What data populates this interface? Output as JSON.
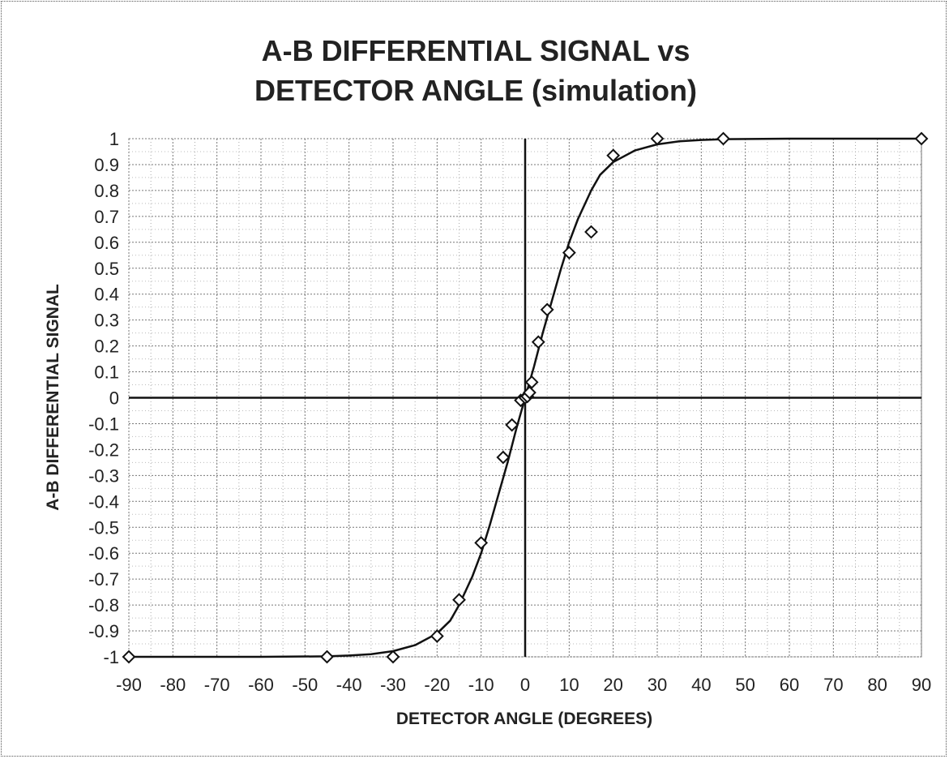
{
  "chart_data": {
    "type": "scatter",
    "title_lines": [
      "A-B DIFFERENTIAL SIGNAL vs",
      "DETECTOR ANGLE (simulation)"
    ],
    "xlabel": "DETECTOR ANGLE (DEGREES)",
    "ylabel": "A-B DIFFERENTIAL SIGNAL",
    "xlim": [
      -90,
      90
    ],
    "ylim": [
      -1,
      1
    ],
    "x_ticks": [
      -90,
      -80,
      -70,
      -60,
      -50,
      -40,
      -30,
      -20,
      -10,
      0,
      10,
      20,
      30,
      40,
      50,
      60,
      70,
      80,
      90
    ],
    "y_ticks": [
      1,
      0.9,
      0.8,
      0.7,
      0.6,
      0.5,
      0.4,
      0.3,
      0.2,
      0.1,
      0,
      -0.1,
      -0.2,
      -0.3,
      -0.4,
      -0.5,
      -0.6,
      -0.7,
      -0.8,
      -0.9,
      -1
    ],
    "x_tick_labels": [
      "-90",
      "-80",
      "-70",
      "-60",
      "-50",
      "-40",
      "-30",
      "-20",
      "-10",
      "0",
      "10",
      "20",
      "30",
      "40",
      "50",
      "60",
      "70",
      "80",
      "90"
    ],
    "y_tick_labels": [
      "1",
      "0.9",
      "0.8",
      "0.7",
      "0.6",
      "0.5",
      "0.4",
      "0.3",
      "0.2",
      "0.1",
      "0",
      "-0.1",
      "-0.2",
      "-0.3",
      "-0.4",
      "-0.5",
      "-0.6",
      "-0.7",
      "-0.8",
      "-0.9",
      "-1"
    ],
    "grid": true,
    "series": [
      {
        "kind": "markers",
        "marker": "diamond",
        "points": [
          [
            -90,
            -1.0
          ],
          [
            -45,
            -1.0
          ],
          [
            -30,
            -1.0
          ],
          [
            -20,
            -0.92
          ],
          [
            -15,
            -0.78
          ],
          [
            -10,
            -0.56
          ],
          [
            -5,
            -0.23
          ],
          [
            -3,
            -0.105
          ],
          [
            -1,
            -0.01
          ],
          [
            0,
            0.0
          ],
          [
            0.5,
            0.005
          ],
          [
            1,
            0.02
          ],
          [
            1.5,
            0.06
          ],
          [
            3,
            0.215
          ],
          [
            5,
            0.34
          ],
          [
            10,
            0.56
          ],
          [
            15,
            0.64
          ],
          [
            20,
            0.935
          ],
          [
            30,
            1.0
          ],
          [
            45,
            1.0
          ],
          [
            90,
            1.0
          ]
        ]
      },
      {
        "kind": "line",
        "points": [
          [
            -90,
            -1.0
          ],
          [
            -60,
            -1.0
          ],
          [
            -45,
            -0.998
          ],
          [
            -40,
            -0.995
          ],
          [
            -35,
            -0.99
          ],
          [
            -30,
            -0.978
          ],
          [
            -25,
            -0.955
          ],
          [
            -20,
            -0.91
          ],
          [
            -17,
            -0.86
          ],
          [
            -15,
            -0.8
          ],
          [
            -12,
            -0.69
          ],
          [
            -10,
            -0.6
          ],
          [
            -8,
            -0.49
          ],
          [
            -6,
            -0.37
          ],
          [
            -4,
            -0.25
          ],
          [
            -2,
            -0.12
          ],
          [
            0,
            0.0
          ],
          [
            2,
            0.12
          ],
          [
            4,
            0.25
          ],
          [
            6,
            0.37
          ],
          [
            8,
            0.49
          ],
          [
            10,
            0.6
          ],
          [
            12,
            0.69
          ],
          [
            15,
            0.8
          ],
          [
            17,
            0.86
          ],
          [
            20,
            0.91
          ],
          [
            25,
            0.955
          ],
          [
            30,
            0.978
          ],
          [
            35,
            0.99
          ],
          [
            40,
            0.995
          ],
          [
            45,
            0.998
          ],
          [
            60,
            1.0
          ],
          [
            90,
            1.0
          ]
        ]
      }
    ]
  }
}
